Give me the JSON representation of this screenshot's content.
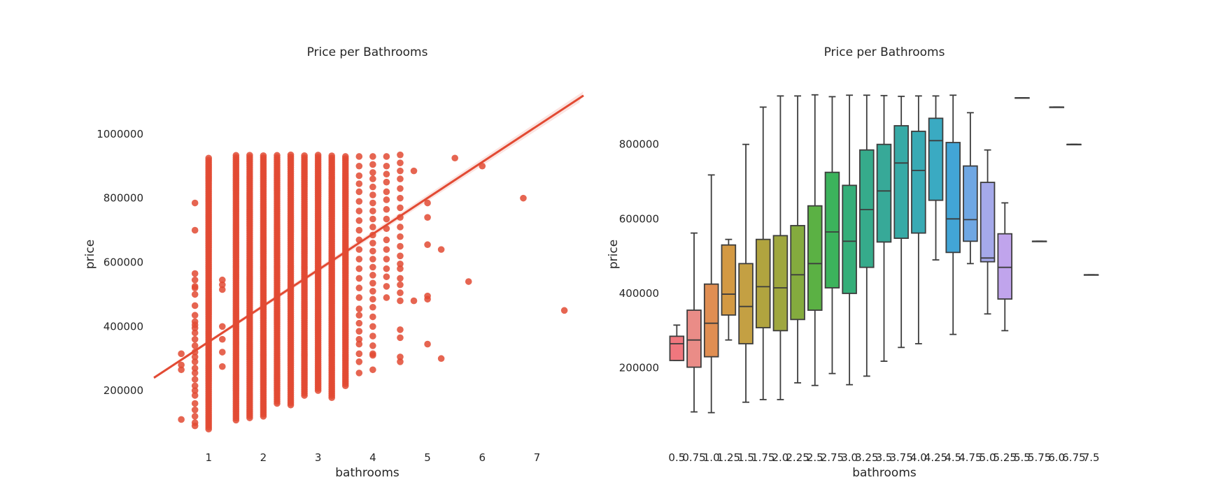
{
  "chart_data": [
    {
      "type": "scatter",
      "title": "Price per Bathrooms",
      "xlabel": "bathrooms",
      "ylabel": "price",
      "xlim": [
        0.0,
        7.85
      ],
      "ylim": [
        50000,
        1200000
      ],
      "x_ticks": [
        1,
        2,
        3,
        4,
        5,
        6,
        7
      ],
      "y_ticks": [
        200000,
        400000,
        600000,
        800000,
        1000000
      ],
      "grid": false,
      "color": "#e24a33",
      "regression_line": {
        "x": [
          0.0,
          7.85
        ],
        "y": [
          240000,
          1120000
        ]
      },
      "dense_columns": [
        {
          "x": 1.0,
          "min": 80000,
          "max": 925000
        },
        {
          "x": 1.5,
          "min": 108000,
          "max": 935000
        },
        {
          "x": 1.75,
          "min": 115000,
          "max": 935000
        },
        {
          "x": 2.0,
          "min": 120000,
          "max": 935000
        },
        {
          "x": 2.25,
          "min": 160000,
          "max": 935000
        },
        {
          "x": 2.5,
          "min": 155000,
          "max": 935000
        },
        {
          "x": 2.75,
          "min": 185000,
          "max": 935000
        },
        {
          "x": 3.0,
          "min": 200000,
          "max": 935000
        },
        {
          "x": 3.25,
          "min": 178000,
          "max": 935000
        },
        {
          "x": 3.5,
          "min": 215000,
          "max": 935000
        }
      ],
      "points": [
        [
          0.5,
          110000
        ],
        [
          0.5,
          265000
        ],
        [
          0.5,
          280000
        ],
        [
          0.5,
          315000
        ],
        [
          0.75,
          700000
        ],
        [
          0.75,
          785000
        ],
        [
          0.75,
          565000
        ],
        [
          0.75,
          545000
        ],
        [
          0.75,
          525000
        ],
        [
          0.75,
          520000
        ],
        [
          0.75,
          500000
        ],
        [
          0.75,
          465000
        ],
        [
          0.75,
          435000
        ],
        [
          0.75,
          415000
        ],
        [
          0.75,
          405000
        ],
        [
          0.75,
          395000
        ],
        [
          0.75,
          380000
        ],
        [
          0.75,
          360000
        ],
        [
          0.75,
          340000
        ],
        [
          0.75,
          320000
        ],
        [
          0.75,
          305000
        ],
        [
          0.75,
          290000
        ],
        [
          0.75,
          270000
        ],
        [
          0.75,
          255000
        ],
        [
          0.75,
          235000
        ],
        [
          0.75,
          215000
        ],
        [
          0.75,
          200000
        ],
        [
          0.75,
          185000
        ],
        [
          0.75,
          160000
        ],
        [
          0.75,
          140000
        ],
        [
          0.75,
          120000
        ],
        [
          0.75,
          100000
        ],
        [
          0.75,
          90000
        ],
        [
          1.25,
          545000
        ],
        [
          1.25,
          530000
        ],
        [
          1.25,
          515000
        ],
        [
          1.25,
          400000
        ],
        [
          1.25,
          360000
        ],
        [
          1.25,
          320000
        ],
        [
          1.25,
          275000
        ],
        [
          3.75,
          455000
        ],
        [
          3.75,
          435000
        ],
        [
          3.75,
          410000
        ],
        [
          3.75,
          385000
        ],
        [
          3.75,
          360000
        ],
        [
          3.75,
          345000
        ],
        [
          3.75,
          315000
        ],
        [
          3.75,
          290000
        ],
        [
          3.75,
          255000
        ],
        [
          3.75,
          930000
        ],
        [
          3.75,
          900000
        ],
        [
          3.75,
          870000
        ],
        [
          3.75,
          845000
        ],
        [
          3.75,
          820000
        ],
        [
          3.75,
          790000
        ],
        [
          3.75,
          760000
        ],
        [
          3.75,
          730000
        ],
        [
          3.75,
          700000
        ],
        [
          3.75,
          670000
        ],
        [
          3.75,
          640000
        ],
        [
          3.75,
          610000
        ],
        [
          3.75,
          580000
        ],
        [
          3.75,
          550000
        ],
        [
          3.75,
          520000
        ],
        [
          3.75,
          490000
        ],
        [
          4.0,
          930000
        ],
        [
          4.0,
          905000
        ],
        [
          4.0,
          880000
        ],
        [
          4.0,
          860000
        ],
        [
          4.0,
          835000
        ],
        [
          4.0,
          810000
        ],
        [
          4.0,
          785000
        ],
        [
          4.0,
          760000
        ],
        [
          4.0,
          735000
        ],
        [
          4.0,
          710000
        ],
        [
          4.0,
          685000
        ],
        [
          4.0,
          660000
        ],
        [
          4.0,
          635000
        ],
        [
          4.0,
          610000
        ],
        [
          4.0,
          585000
        ],
        [
          4.0,
          560000
        ],
        [
          4.0,
          535000
        ],
        [
          4.0,
          510000
        ],
        [
          4.0,
          485000
        ],
        [
          4.0,
          460000
        ],
        [
          4.0,
          430000
        ],
        [
          4.0,
          400000
        ],
        [
          4.0,
          370000
        ],
        [
          4.0,
          340000
        ],
        [
          4.0,
          315000
        ],
        [
          4.0,
          310000
        ],
        [
          4.0,
          265000
        ],
        [
          4.25,
          930000
        ],
        [
          4.25,
          900000
        ],
        [
          4.25,
          875000
        ],
        [
          4.25,
          850000
        ],
        [
          4.25,
          820000
        ],
        [
          4.25,
          795000
        ],
        [
          4.25,
          765000
        ],
        [
          4.25,
          735000
        ],
        [
          4.25,
          705000
        ],
        [
          4.25,
          670000
        ],
        [
          4.25,
          640000
        ],
        [
          4.25,
          610000
        ],
        [
          4.25,
          580000
        ],
        [
          4.25,
          555000
        ],
        [
          4.25,
          525000
        ],
        [
          4.25,
          490000
        ],
        [
          4.5,
          935000
        ],
        [
          4.5,
          910000
        ],
        [
          4.5,
          885000
        ],
        [
          4.5,
          860000
        ],
        [
          4.5,
          830000
        ],
        [
          4.5,
          800000
        ],
        [
          4.5,
          770000
        ],
        [
          4.5,
          740000
        ],
        [
          4.5,
          710000
        ],
        [
          4.5,
          680000
        ],
        [
          4.5,
          650000
        ],
        [
          4.5,
          620000
        ],
        [
          4.5,
          595000
        ],
        [
          4.5,
          580000
        ],
        [
          4.5,
          550000
        ],
        [
          4.5,
          530000
        ],
        [
          4.5,
          505000
        ],
        [
          4.5,
          480000
        ],
        [
          4.5,
          390000
        ],
        [
          4.5,
          365000
        ],
        [
          4.5,
          305000
        ],
        [
          4.5,
          290000
        ],
        [
          4.75,
          885000
        ],
        [
          4.75,
          480000
        ],
        [
          5.0,
          785000
        ],
        [
          5.0,
          740000
        ],
        [
          5.0,
          655000
        ],
        [
          5.0,
          495000
        ],
        [
          5.0,
          485000
        ],
        [
          5.0,
          345000
        ],
        [
          5.25,
          640000
        ],
        [
          5.25,
          300000
        ],
        [
          5.5,
          925000
        ],
        [
          5.75,
          540000
        ],
        [
          6.0,
          900000
        ],
        [
          6.75,
          800000
        ],
        [
          7.5,
          450000
        ]
      ]
    },
    {
      "type": "box",
      "title": "Price per Bathrooms",
      "xlabel": "bathrooms",
      "ylabel": "price",
      "ylim": [
        40000,
        1000000
      ],
      "y_ticks": [
        200000,
        400000,
        600000,
        800000
      ],
      "grid": false,
      "categories": [
        "0.5",
        "0.75",
        "1.0",
        "1.25",
        "1.5",
        "1.75",
        "2.0",
        "2.25",
        "2.5",
        "2.75",
        "3.0",
        "3.25",
        "3.5",
        "3.75",
        "4.0",
        "4.25",
        "4.5",
        "4.75",
        "5.0",
        "5.25",
        "5.5",
        "5.75",
        "6.0",
        "6.75",
        "7.5"
      ],
      "boxes": [
        {
          "whisker_low": 220000,
          "q1": 220000,
          "median": 265000,
          "q3": 285000,
          "whisker_high": 315000,
          "color": "#f0777e"
        },
        {
          "whisker_low": 82000,
          "q1": 202000,
          "median": 275000,
          "q3": 355000,
          "whisker_high": 562000,
          "color": "#ea8c87"
        },
        {
          "whisker_low": 80000,
          "q1": 230000,
          "median": 320000,
          "q3": 425000,
          "whisker_high": 718000,
          "color": "#e08e52"
        },
        {
          "whisker_low": 275000,
          "q1": 342000,
          "median": 398000,
          "q3": 530000,
          "whisker_high": 545000,
          "color": "#d39943"
        },
        {
          "whisker_low": 108000,
          "q1": 265000,
          "median": 365000,
          "q3": 480000,
          "whisker_high": 800000,
          "color": "#c4a043"
        },
        {
          "whisker_low": 115000,
          "q1": 308000,
          "median": 418000,
          "q3": 545000,
          "whisker_high": 900000,
          "color": "#b1a43f"
        },
        {
          "whisker_low": 115000,
          "q1": 300000,
          "median": 415000,
          "q3": 555000,
          "whisker_high": 930000,
          "color": "#9fa73f"
        },
        {
          "whisker_low": 160000,
          "q1": 330000,
          "median": 450000,
          "q3": 582000,
          "whisker_high": 930000,
          "color": "#84ab3e"
        },
        {
          "whisker_low": 153000,
          "q1": 355000,
          "median": 480000,
          "q3": 635000,
          "whisker_high": 933000,
          "color": "#5bb144"
        },
        {
          "whisker_low": 185000,
          "q1": 415000,
          "median": 565000,
          "q3": 725000,
          "whisker_high": 928000,
          "color": "#3cb35c"
        },
        {
          "whisker_low": 155000,
          "q1": 400000,
          "median": 540000,
          "q3": 690000,
          "whisker_high": 932000,
          "color": "#35ae79"
        },
        {
          "whisker_low": 178000,
          "q1": 470000,
          "median": 625000,
          "q3": 785000,
          "whisker_high": 932000,
          "color": "#36ab8b"
        },
        {
          "whisker_low": 218000,
          "q1": 538000,
          "median": 675000,
          "q3": 800000,
          "whisker_high": 931000,
          "color": "#37a998"
        },
        {
          "whisker_low": 255000,
          "q1": 548000,
          "median": 750000,
          "q3": 850000,
          "whisker_high": 929000,
          "color": "#37aaa6"
        },
        {
          "whisker_low": 265000,
          "q1": 562000,
          "median": 730000,
          "q3": 835000,
          "whisker_high": 930000,
          "color": "#38aab4"
        },
        {
          "whisker_low": 490000,
          "q1": 650000,
          "median": 810000,
          "q3": 870000,
          "whisker_high": 930000,
          "color": "#3aaac2"
        },
        {
          "whisker_low": 290000,
          "q1": 510000,
          "median": 600000,
          "q3": 805000,
          "whisker_high": 932000,
          "color": "#42a5d6"
        },
        {
          "whisker_low": 480000,
          "q1": 540000,
          "median": 598000,
          "q3": 742000,
          "whisker_high": 885000,
          "color": "#6fa7e3"
        },
        {
          "whisker_low": 345000,
          "q1": 485000,
          "median": 495000,
          "q3": 698000,
          "whisker_high": 785000,
          "color": "#a5a9ea"
        },
        {
          "whisker_low": 300000,
          "q1": 385000,
          "median": 470000,
          "q3": 560000,
          "whisker_high": 643000,
          "color": "#c0a4ec"
        },
        {
          "whisker_low": 925000,
          "q1": 925000,
          "median": 925000,
          "q3": 925000,
          "whisker_high": 925000,
          "color": "#d99ee8"
        },
        {
          "whisker_low": 540000,
          "q1": 540000,
          "median": 540000,
          "q3": 540000,
          "whisker_high": 540000,
          "color": "#e59ade"
        },
        {
          "whisker_low": 900000,
          "q1": 900000,
          "median": 900000,
          "q3": 900000,
          "whisker_high": 900000,
          "color": "#ec97d1"
        },
        {
          "whisker_low": 800000,
          "q1": 800000,
          "median": 800000,
          "q3": 800000,
          "whisker_high": 800000,
          "color": "#f096c1"
        },
        {
          "whisker_low": 450000,
          "q1": 450000,
          "median": 450000,
          "q3": 450000,
          "whisker_high": 450000,
          "color": "#f18fae"
        }
      ]
    }
  ]
}
